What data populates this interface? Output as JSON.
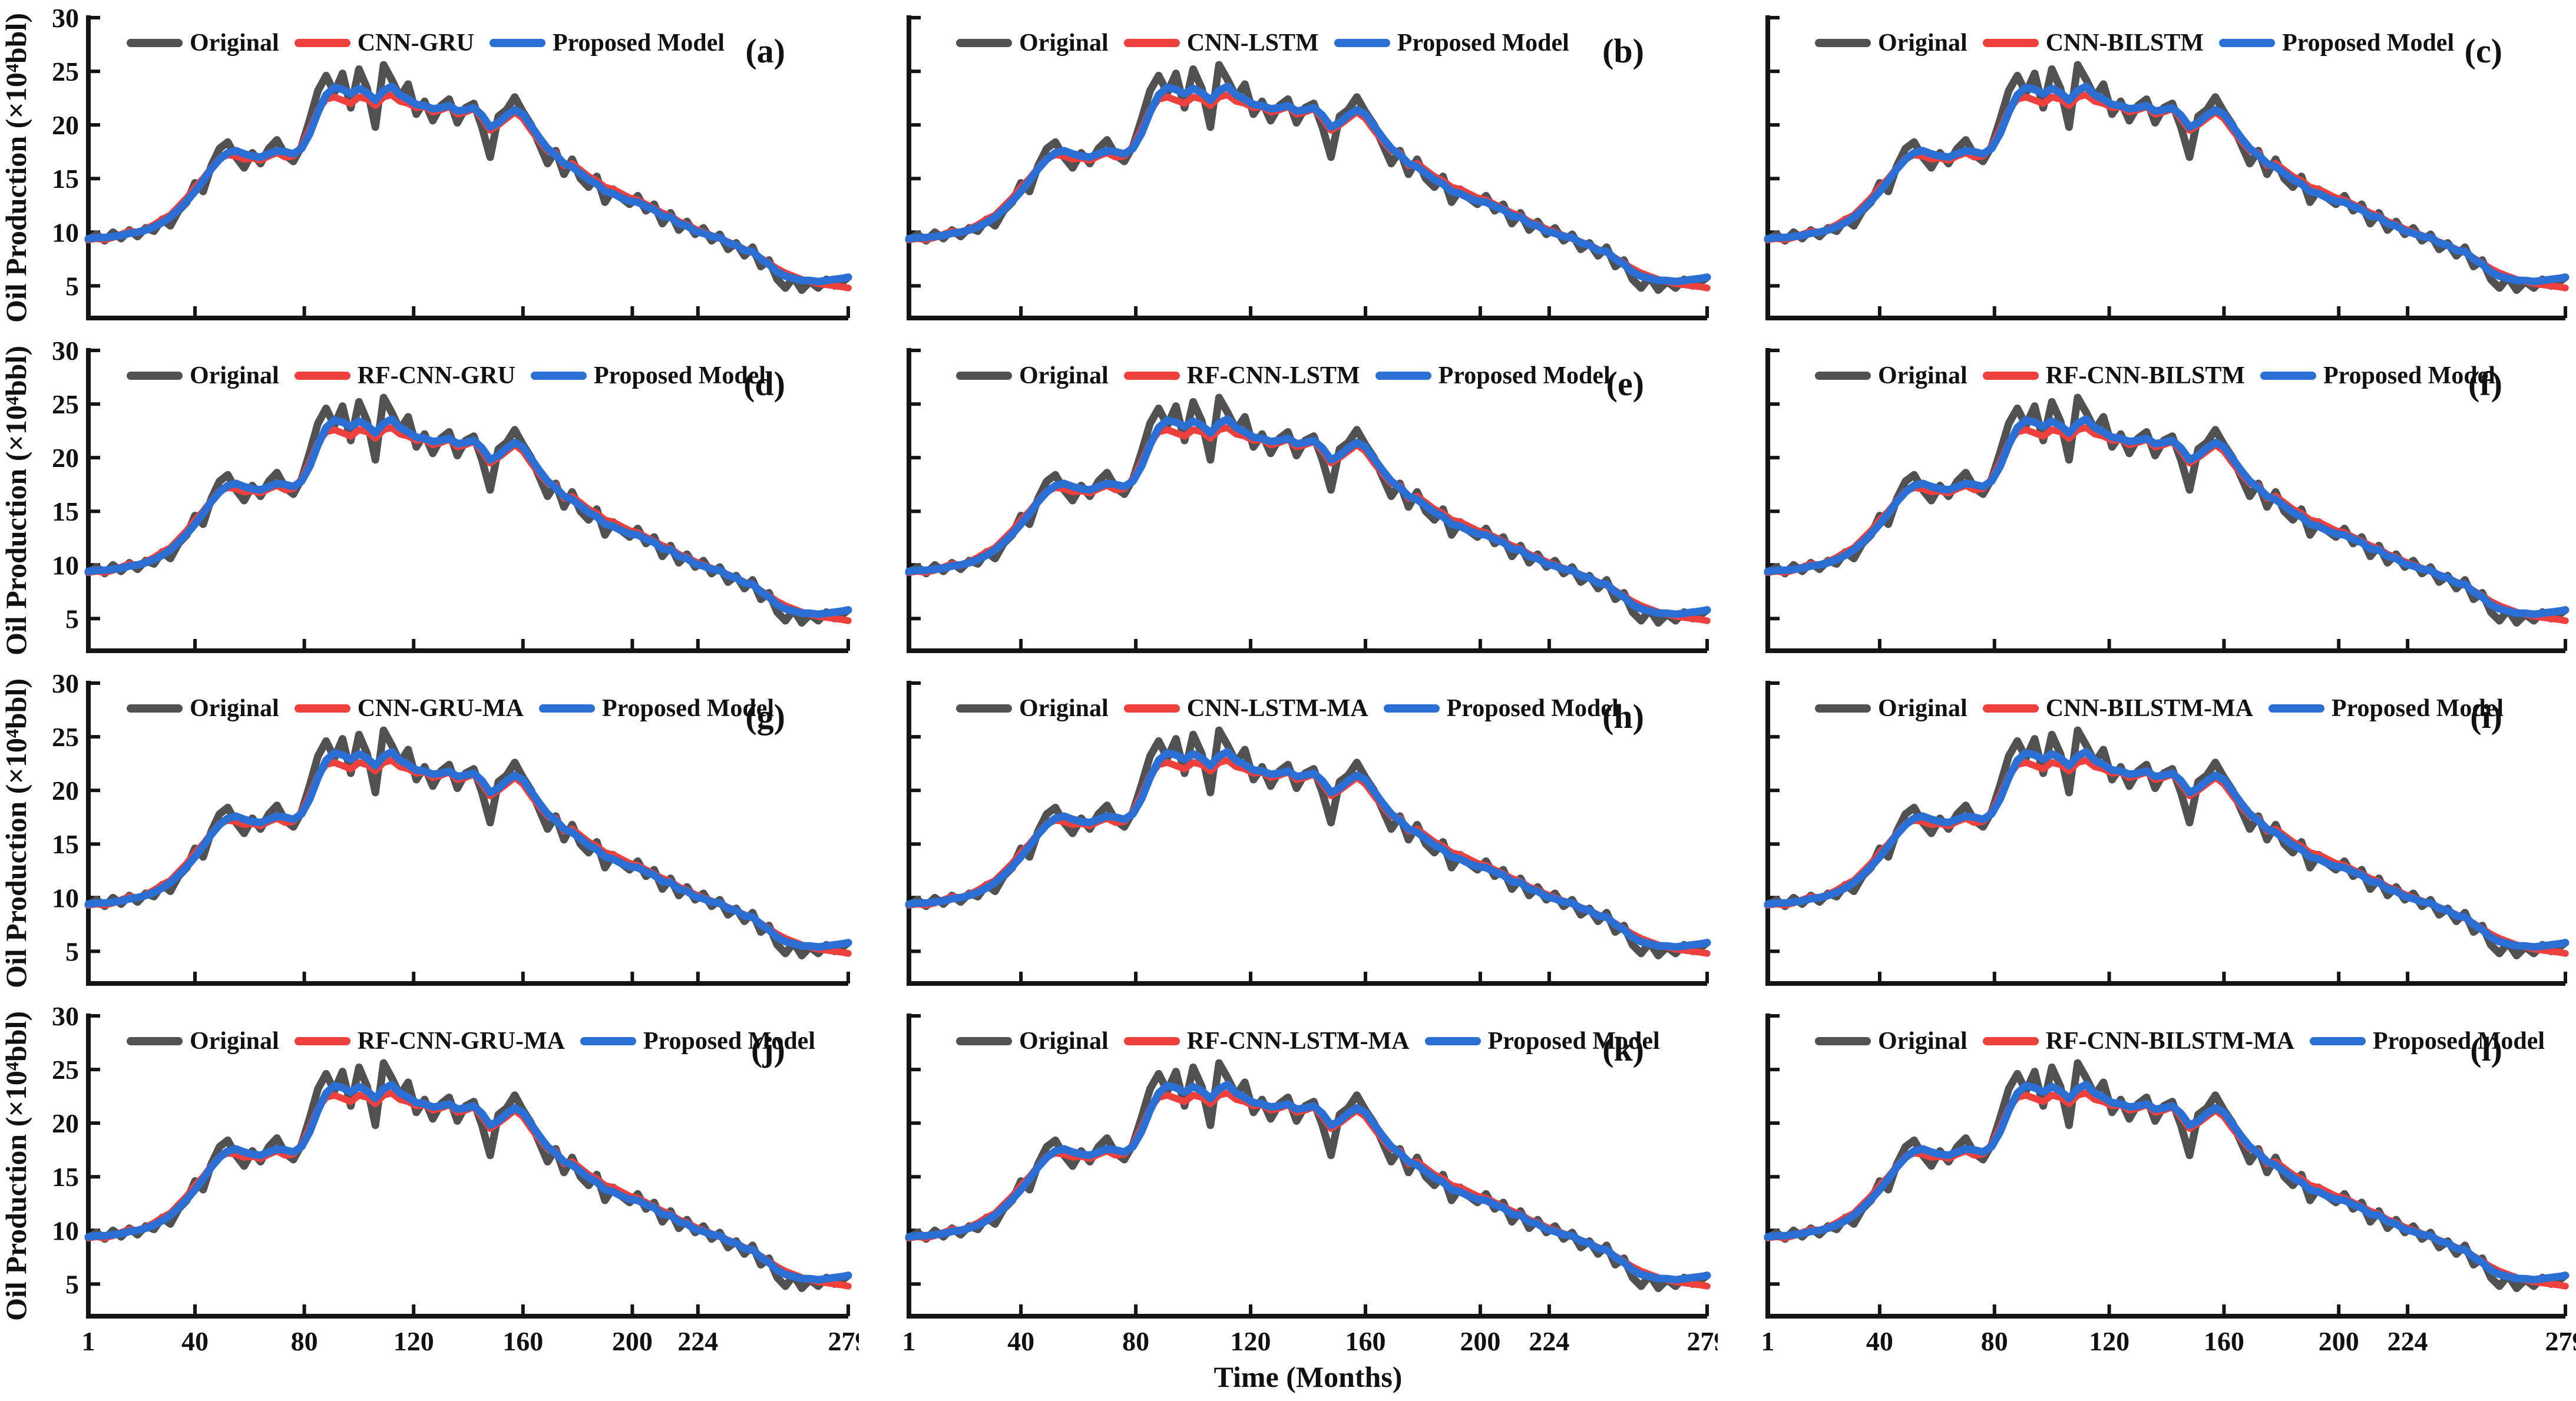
{
  "figure": {
    "xlabel": "Time (Months)",
    "ylabel": "Oil Production (×10⁴bbl)",
    "legend_original": "Original",
    "legend_proposed": "Proposed Model",
    "x_ticks": [
      1,
      40,
      80,
      120,
      160,
      200,
      224,
      279
    ],
    "y_ticks": [
      30,
      25,
      20,
      15,
      10,
      5
    ],
    "x_range": [
      1,
      279
    ],
    "y_range": [
      2,
      30
    ],
    "colors": {
      "original": "#515151",
      "model": "#ee413d",
      "proposed": "#2b6fd4",
      "axis": "#141414"
    }
  },
  "chart_data": {
    "type": "line",
    "x": [
      1,
      4,
      7,
      10,
      13,
      16,
      19,
      22,
      25,
      28,
      31,
      34,
      37,
      40,
      43,
      46,
      49,
      52,
      55,
      58,
      61,
      64,
      67,
      70,
      73,
      76,
      79,
      82,
      85,
      88,
      91,
      94,
      97,
      100,
      103,
      106,
      109,
      112,
      115,
      118,
      121,
      124,
      127,
      130,
      133,
      136,
      139,
      142,
      145,
      148,
      151,
      154,
      157,
      160,
      163,
      166,
      169,
      172,
      175,
      178,
      181,
      184,
      187,
      190,
      193,
      196,
      199,
      202,
      205,
      208,
      211,
      214,
      217,
      220,
      223,
      226,
      229,
      232,
      235,
      238,
      241,
      244,
      247,
      250,
      253,
      256,
      259,
      262,
      265,
      268,
      271,
      274,
      277,
      279
    ],
    "series": [
      {
        "name": "Original",
        "role": "original",
        "color": "#515151",
        "values": [
          9.3,
          9.8,
          9.2,
          10.0,
          9.4,
          10.2,
          9.6,
          10.4,
          10.1,
          11.2,
          10.6,
          12.0,
          12.8,
          14.6,
          13.8,
          16.2,
          17.8,
          18.4,
          17.0,
          16.0,
          17.4,
          16.4,
          17.8,
          18.6,
          17.2,
          16.6,
          18.0,
          20.5,
          23.2,
          24.6,
          23.0,
          24.8,
          21.6,
          25.2,
          23.4,
          19.8,
          25.6,
          24.2,
          22.6,
          23.8,
          21.0,
          22.2,
          20.4,
          21.8,
          22.4,
          20.2,
          21.6,
          22.0,
          19.8,
          17.0,
          20.8,
          21.4,
          22.6,
          21.2,
          20.0,
          18.2,
          16.4,
          17.6,
          15.4,
          16.8,
          15.0,
          14.2,
          15.2,
          12.8,
          14.0,
          13.2,
          12.6,
          13.4,
          12.0,
          12.6,
          10.8,
          11.8,
          10.2,
          11.0,
          9.8,
          10.4,
          9.2,
          9.8,
          8.4,
          9.0,
          7.8,
          8.6,
          6.8,
          7.4,
          5.6,
          4.8,
          5.8,
          4.6,
          5.4,
          4.8,
          5.6,
          5.0,
          5.4,
          5.8
        ]
      },
      {
        "name_per_panel": true,
        "role": "model",
        "color": "#ee413d",
        "values": [
          9.3,
          9.4,
          9.3,
          9.5,
          9.8,
          10.1,
          10.0,
          10.3,
          10.7,
          11.2,
          11.6,
          12.4,
          13.2,
          14.2,
          15.0,
          16.0,
          16.9,
          17.2,
          17.1,
          16.8,
          16.9,
          16.7,
          17.1,
          17.4,
          17.0,
          17.1,
          18.0,
          19.6,
          21.4,
          22.4,
          22.6,
          22.3,
          22.0,
          22.6,
          22.4,
          21.8,
          22.6,
          22.8,
          22.2,
          22.0,
          21.6,
          21.7,
          21.2,
          21.4,
          21.7,
          21.0,
          21.2,
          21.5,
          20.6,
          19.5,
          20.0,
          20.6,
          21.2,
          20.6,
          19.5,
          18.5,
          17.6,
          17.4,
          16.2,
          16.4,
          15.8,
          15.2,
          14.8,
          14.2,
          14.0,
          13.6,
          13.2,
          13.0,
          12.6,
          12.2,
          11.8,
          11.5,
          11.0,
          10.7,
          10.3,
          10.0,
          9.7,
          9.4,
          9.1,
          8.8,
          8.4,
          8.1,
          7.6,
          7.1,
          6.6,
          6.2,
          5.9,
          5.6,
          5.4,
          5.2,
          5.1,
          5.0,
          4.9,
          4.8
        ]
      },
      {
        "name": "Proposed Model",
        "role": "proposed",
        "color": "#2b6fd4",
        "values": [
          9.4,
          9.5,
          9.5,
          9.6,
          9.7,
          9.9,
          10.0,
          10.2,
          10.5,
          10.9,
          11.4,
          12.1,
          12.9,
          13.8,
          14.8,
          15.9,
          16.8,
          17.4,
          17.6,
          17.3,
          17.1,
          17.0,
          17.3,
          17.6,
          17.5,
          17.3,
          17.8,
          19.2,
          21.2,
          22.8,
          23.5,
          23.3,
          22.9,
          23.4,
          23.0,
          22.3,
          23.2,
          23.6,
          22.8,
          22.4,
          21.9,
          21.8,
          21.5,
          21.6,
          21.8,
          21.3,
          21.4,
          21.6,
          20.9,
          19.8,
          20.2,
          20.9,
          21.4,
          21.0,
          19.9,
          18.8,
          17.8,
          17.2,
          16.4,
          16.1,
          15.5,
          14.9,
          14.5,
          13.8,
          13.6,
          13.2,
          12.9,
          12.8,
          12.4,
          12.1,
          11.5,
          11.4,
          10.8,
          10.6,
          10.1,
          9.9,
          9.6,
          9.5,
          9.0,
          8.8,
          8.3,
          8.2,
          7.5,
          7.0,
          6.3,
          5.9,
          5.7,
          5.5,
          5.5,
          5.4,
          5.5,
          5.6,
          5.7,
          5.8
        ]
      }
    ],
    "panels": [
      {
        "letter": "(a)",
        "model": "CNN-GRU"
      },
      {
        "letter": "(b)",
        "model": "CNN-LSTM"
      },
      {
        "letter": "(c)",
        "model": "CNN-BILSTM"
      },
      {
        "letter": "(d)",
        "model": "RF-CNN-GRU"
      },
      {
        "letter": "(e)",
        "model": "RF-CNN-LSTM"
      },
      {
        "letter": "(f)",
        "model": "RF-CNN-BILSTM"
      },
      {
        "letter": "(g)",
        "model": "CNN-GRU-MA"
      },
      {
        "letter": "(h)",
        "model": "CNN-LSTM-MA"
      },
      {
        "letter": "(i)",
        "model": "CNN-BILSTM-MA"
      },
      {
        "letter": "(j)",
        "model": "RF-CNN-GRU-MA"
      },
      {
        "letter": "(k)",
        "model": "RF-CNN-LSTM-MA"
      },
      {
        "letter": "(l)",
        "model": "RF-CNN-BILSTM-MA"
      }
    ]
  }
}
